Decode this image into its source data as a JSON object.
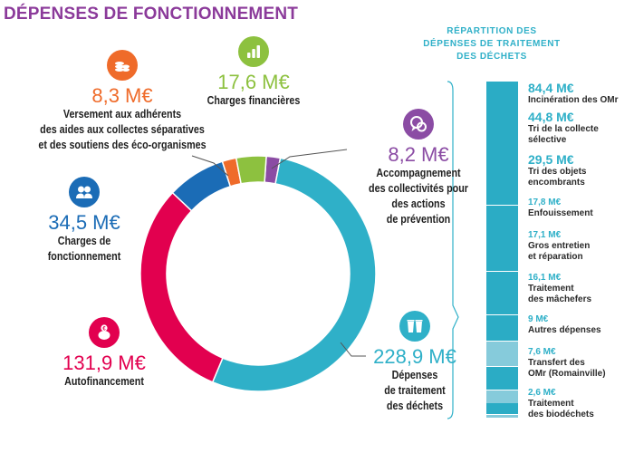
{
  "title": "DÉPENSES DE FONCTIONNEMENT",
  "colors": {
    "title": "#8b3a9a",
    "dechets": "#2fb0c8",
    "autofinancement": "#e2004f",
    "charges_fonctionnement": "#1b6cb6",
    "versement": "#ef6b2a",
    "charges_financieres": "#8dc13f",
    "accompagnement": "#8b4ca4",
    "bar_dark": "#2bacc5",
    "bar_light": "#86cbdb"
  },
  "chart_data": [
    {
      "type": "pie",
      "variant": "donut",
      "title": "DÉPENSES DE FONCTIONNEMENT",
      "unit": "M€",
      "slices": [
        {
          "key": "dechets",
          "value": 228.9,
          "value_label": "228,9 M€",
          "label": "Dépenses\nde traitement\ndes déchets",
          "color": "#2fb0c8",
          "icon": "recycling-bins-icon"
        },
        {
          "key": "autofinancement",
          "value": 131.9,
          "value_label": "131,9 M€",
          "label": "Autofinancement",
          "color": "#e2004f",
          "icon": "piggy-bank-euro-icon"
        },
        {
          "key": "charges_fonctionnement",
          "value": 34.5,
          "value_label": "34,5 M€",
          "label": "Charges de\nfonctionnement",
          "color": "#1b6cb6",
          "icon": "people-icon"
        },
        {
          "key": "versement",
          "value": 8.3,
          "value_label": "8,3 M€",
          "label": "Versement aux adhérents\ndes aides aux collectes séparatives\net des soutiens des éco-organismes",
          "color": "#ef6b2a",
          "icon": "coins-stack-icon"
        },
        {
          "key": "charges_financieres",
          "value": 17.6,
          "value_label": "17,6 M€",
          "label": "Charges financières",
          "color": "#8dc13f",
          "icon": "bar-chart-icon"
        },
        {
          "key": "accompagnement",
          "value": 8.2,
          "value_label": "8,2 M€",
          "label": "Accompagnement\ndes collectivités pour\ndes actions\nde prévention",
          "color": "#8b4ca4",
          "icon": "speech-bubble-icon"
        }
      ]
    },
    {
      "type": "bar",
      "variant": "stacked-vertical",
      "title": "RÉPARTITION DES\nDÉPENSES DE TRAITEMENT\nDES DÉCHETS",
      "unit": "M€",
      "segments": [
        {
          "value": 84.4,
          "value_label": "84,4 M€",
          "label": "Incinération des OMr",
          "shade": "dark"
        },
        {
          "value": 44.8,
          "value_label": "44,8 M€",
          "label": "Tri de la collecte\nsélective",
          "shade": "dark"
        },
        {
          "value": 29.5,
          "value_label": "29,5 M€",
          "label": "Tri des objets\nencombrants",
          "shade": "dark"
        },
        {
          "value": 17.8,
          "value_label": "17,8 M€",
          "label": "Enfouissement",
          "shade": "dark"
        },
        {
          "value": 17.1,
          "value_label": "17,1 M€",
          "label": "Gros entretien\net réparation",
          "shade": "light"
        },
        {
          "value": 16.1,
          "value_label": "16,1 M€",
          "label": "Traitement\ndes mâchefers",
          "shade": "dark"
        },
        {
          "value": 9,
          "value_label": "9 M€",
          "label": "Autres dépenses",
          "shade": "light"
        },
        {
          "value": 7.6,
          "value_label": "7,6 M€",
          "label": "Transfert des\nOMr (Romainville)",
          "shade": "dark"
        },
        {
          "value": 2.6,
          "value_label": "2,6 M€",
          "label": "Traitement\ndes biodéchets",
          "shade": "light"
        }
      ]
    }
  ]
}
